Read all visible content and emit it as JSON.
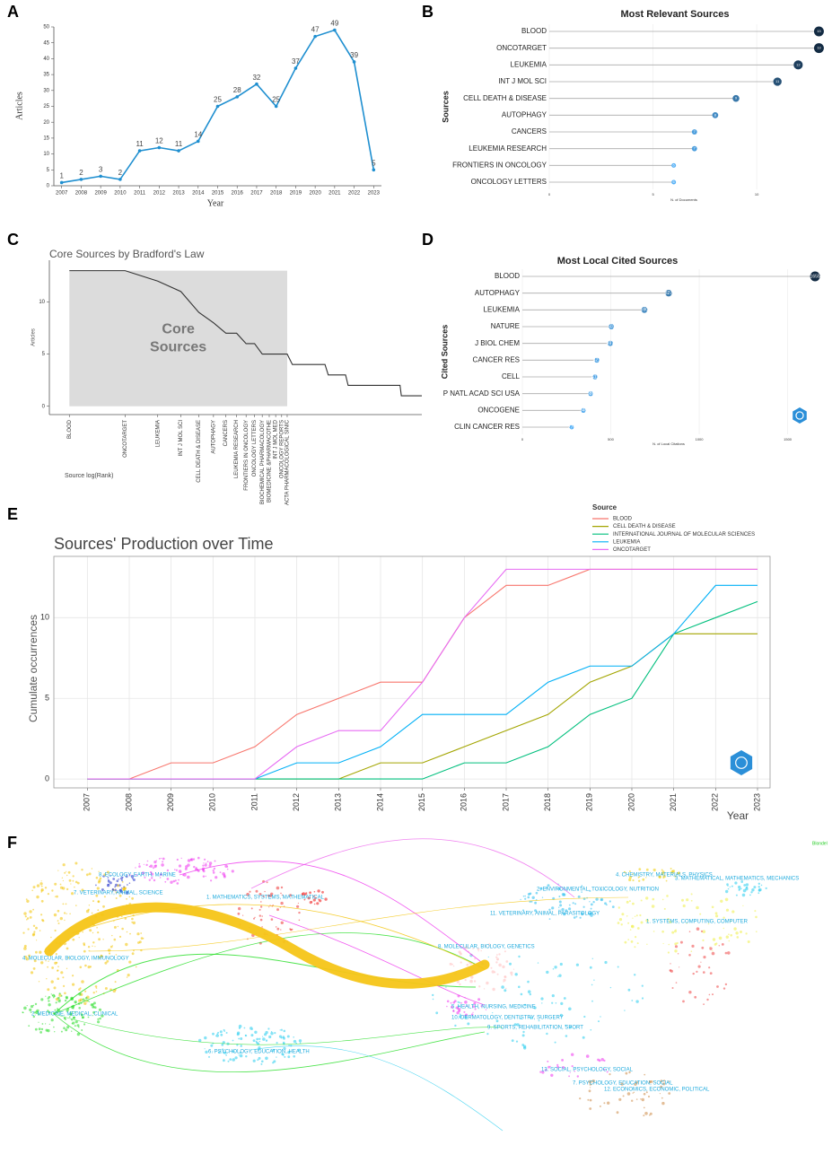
{
  "chart_data": [
    {
      "type": "line",
      "panel": "A",
      "xlabel": "Year",
      "ylabel": "Articles",
      "x": [
        2007,
        2008,
        2009,
        2010,
        2011,
        2012,
        2013,
        2014,
        2015,
        2016,
        2017,
        2018,
        2019,
        2020,
        2021,
        2022,
        2023
      ],
      "values": [
        1,
        2,
        3,
        2,
        11,
        12,
        11,
        14,
        25,
        28,
        32,
        25,
        37,
        47,
        49,
        39,
        5
      ],
      "color": "#1f8fd0",
      "markers": true,
      "data_labels": true,
      "xlim": [
        2006.6,
        2023.4
      ],
      "ylim": [
        0,
        50
      ],
      "xticks": [
        2007,
        2008,
        2009,
        2010,
        2011,
        2012,
        2013,
        2014,
        2015,
        2016,
        2017,
        2018,
        2019,
        2020,
        2021,
        2022,
        2023
      ],
      "yticks": [
        0,
        5,
        10,
        15,
        20,
        25,
        30,
        35,
        40,
        45,
        50
      ]
    },
    {
      "type": "lollipop",
      "panel": "B",
      "title": "Most Relevant Sources",
      "ylabel": "Sources",
      "xlabel": "N. of Documents",
      "categories": [
        "BLOOD",
        "ONCOTARGET",
        "LEUKEMIA",
        "INT J MOL SCI",
        "CELL DEATH & DISEASE",
        "AUTOPHAGY",
        "CANCERS",
        "LEUKEMIA RESEARCH",
        "FRONTIERS IN ONCOLOGY",
        "ONCOLOGY LETTERS"
      ],
      "values": [
        13,
        13,
        12,
        11,
        9,
        8,
        7,
        7,
        6,
        6
      ],
      "color_low": "#56b1f7",
      "color_high": "#132b43",
      "grid": true,
      "xlim": [
        0,
        13.5
      ],
      "xticks": [
        0,
        5,
        10
      ]
    },
    {
      "type": "line",
      "panel": "C",
      "title": "Core Sources by Bradford's Law",
      "xlabel": "Source log(Rank)",
      "ylabel": "Articles",
      "x": [
        1,
        2,
        3,
        4,
        5,
        6,
        7,
        8,
        9,
        10,
        11,
        12,
        13,
        14,
        15,
        16,
        24,
        25,
        31,
        32,
        61,
        62,
        80
      ],
      "values": [
        13,
        13,
        12,
        11,
        9,
        8,
        7,
        7,
        6,
        6,
        5,
        5,
        5,
        5,
        5,
        4,
        4,
        3,
        3,
        2,
        2,
        1,
        1
      ],
      "color": "#333333",
      "xscale": "log",
      "xlim": [
        0.78,
        80
      ],
      "ylim": [
        -0.8,
        14
      ],
      "xticks": [
        {
          "value": 1,
          "label": "BLOOD"
        },
        {
          "value": 2,
          "label": "ONCOTARGET"
        },
        {
          "value": 3,
          "label": "LEUKEMIA"
        },
        {
          "value": 4,
          "label": "INT J MOL SCI"
        },
        {
          "value": 5,
          "label": "CELL DEATH & DISEASE"
        },
        {
          "value": 6,
          "label": "AUTOPHAGY"
        },
        {
          "value": 7,
          "label": "CANCERS"
        },
        {
          "value": 8,
          "label": "LEUKEMIA RESEARCH"
        },
        {
          "value": 9,
          "label": "FRONTIERS IN ONCOLOGY"
        },
        {
          "value": 10,
          "label": "ONCOLOGY LETTERS"
        },
        {
          "value": 11,
          "label": "BIOCHEMICAL PHARMACOLOGY"
        },
        {
          "value": 12,
          "label": "BIOMEDICINE &PHARMACOTHE"
        },
        {
          "value": 13,
          "label": "INT J MOL MED"
        },
        {
          "value": 14,
          "label": "ONCOLOGY REPORTS"
        },
        {
          "value": 15,
          "label": "ACTA PHARMACOLOGICAL SINIC"
        }
      ],
      "yticks": [
        0,
        5,
        10
      ],
      "core_range": [
        1,
        15
      ],
      "shade_color": "#dcdcdc",
      "annotation": [
        "Core",
        "Sources"
      ]
    },
    {
      "type": "lollipop",
      "panel": "D",
      "title": "Most Local Cited Sources",
      "ylabel": "Cited Sources",
      "xlabel": "N. of Local Citations",
      "categories": [
        "BLOOD",
        "AUTOPHAGY",
        "LEUKEMIA",
        "NATURE",
        "J BIOL CHEM",
        "CANCER RES",
        "CELL",
        "P NATL ACAD SCI USA",
        "ONCOGENE",
        "CLIN CANCER RES"
      ],
      "values": [
        1655,
        827,
        690,
        503,
        497,
        421,
        411,
        386,
        345,
        279
      ],
      "color_low": "#56b1f7",
      "color_high": "#132b43",
      "grid": true,
      "xlim": [
        0,
        1700
      ],
      "xticks": [
        0,
        500,
        1000,
        1500
      ]
    },
    {
      "type": "line",
      "panel": "E",
      "title": "Sources' Production over Time",
      "xlabel": "Year",
      "ylabel": "Cumulate occurrences",
      "legend_title": "Source",
      "x": [
        2007,
        2008,
        2009,
        2010,
        2011,
        2012,
        2013,
        2014,
        2015,
        2016,
        2017,
        2018,
        2019,
        2020,
        2021,
        2022,
        2023
      ],
      "series": [
        {
          "name": "BLOOD",
          "color": "#f8766d",
          "values": [
            0,
            0,
            1,
            1,
            2,
            4,
            5,
            6,
            6,
            10,
            12,
            12,
            13,
            13,
            13,
            13,
            13
          ]
        },
        {
          "name": "CELL DEATH & DISEASE",
          "color": "#a3a500",
          "values": [
            0,
            0,
            0,
            0,
            0,
            0,
            0,
            1,
            1,
            2,
            3,
            4,
            6,
            7,
            9,
            9,
            9
          ]
        },
        {
          "name": "INTERNATIONAL JOURNAL OF MOLECULAR SCIENCES",
          "color": "#00bf7d",
          "values": [
            0,
            0,
            0,
            0,
            0,
            0,
            0,
            0,
            0,
            1,
            1,
            2,
            4,
            5,
            9,
            10,
            11
          ]
        },
        {
          "name": "LEUKEMIA",
          "color": "#00b0f6",
          "values": [
            0,
            0,
            0,
            0,
            0,
            1,
            1,
            2,
            4,
            4,
            4,
            6,
            7,
            7,
            9,
            12,
            12
          ]
        },
        {
          "name": "ONCOTARGET",
          "color": "#e76bf3",
          "values": [
            0,
            0,
            0,
            0,
            0,
            2,
            3,
            3,
            6,
            10,
            13,
            13,
            13,
            13,
            13,
            13,
            13
          ]
        }
      ],
      "grid": true,
      "xlim": [
        2006.2,
        2023.3
      ],
      "ylim": [
        -0.55,
        13.8
      ],
      "xticks": [
        2007,
        2008,
        2009,
        2010,
        2011,
        2012,
        2013,
        2014,
        2015,
        2016,
        2017,
        2018,
        2019,
        2020,
        2021,
        2022,
        2023
      ],
      "yticks": [
        0,
        5,
        10
      ]
    }
  ],
  "map_overlay": {
    "panel": "F",
    "labels": [
      "8. ECOLOGY, EARTH, MARINE",
      "7. VETERINARY, ANIMAL, SCIENCE",
      "1. MATHEMATICS, SYSTEMS, MATHEMATICAL",
      "4. MOLECULAR, BIOLOGY, IMMUNOLOGY",
      "2. MEDICINE, MEDICAL, CLINICAL",
      "6. PSYCHOLOGY, EDUCATION, HEALTH",
      "4. CHEMISTRY, MATERIALS, PHYSICS",
      "3. MATHEMATICAL, MATHEMATICS, MECHANICS",
      "2. ENVIRONMENTAL, TOXICOLOGY, NUTRITION",
      "11. VETERINARY, ANIMAL, PARASITOLOGY",
      "1. SYSTEMS, COMPUTING, COMPUTER",
      "8. MOLECULAR, BIOLOGY, GENETICS",
      "5. HEALTH, NURSING, MEDICINE",
      "10. DERMATOLOGY, DENTISTRY, SURGERY",
      "9. SPORTS, REHABILITATION, SPORT",
      "13. SOCIAL, PSYCHOLOGY, SOCIAL",
      "7. PSYCHOLOGY, EDUCATION, SOCIAL",
      "12. ECONOMICS, ECONOMIC, POLITICAL"
    ],
    "legend": "Blondel"
  }
}
